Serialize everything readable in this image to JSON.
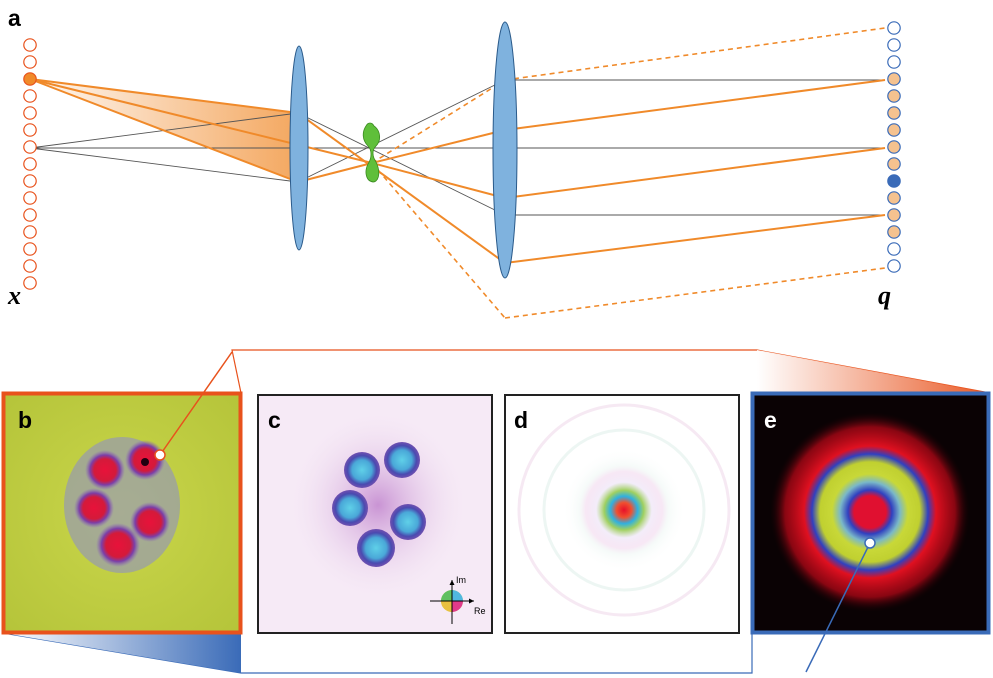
{
  "panels": {
    "a": "a",
    "b": "b",
    "c": "c",
    "d": "d",
    "e": "e"
  },
  "axes": {
    "input": "x",
    "output": "q"
  },
  "phase_wheel": {
    "im": "Im",
    "re": "Re"
  },
  "colors": {
    "orange": "#f08a2a",
    "orange_fill": "#f5c28f",
    "orange_frame": "#e8521c",
    "blue_frame": "#3a6bb8",
    "lens": "#7fb2de",
    "sample": "#5fbf3a",
    "ray_gray": "#555555"
  },
  "input_pixels": {
    "count": 15,
    "highlighted_index": 2
  },
  "output_pixels": {
    "count": 15,
    "filled_range": [
      3,
      12
    ],
    "blue_index": 9
  }
}
